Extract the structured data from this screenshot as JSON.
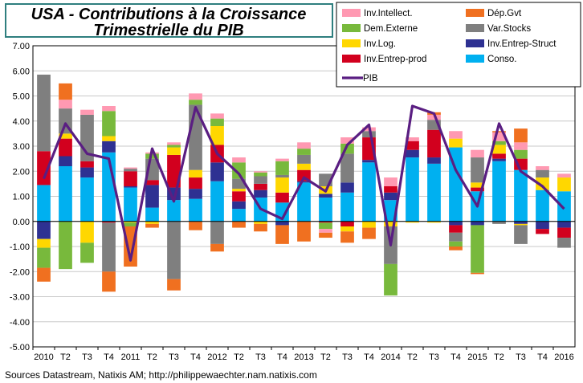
{
  "chart_data": {
    "type": "bar",
    "stacked": true,
    "title_line1": "USA - Contributions à la Croissance",
    "title_line2": "Trimestrielle du PIB",
    "source": "Sources Datastream, Natixis AM; http://philippewaechter.nam.natixis.com",
    "ylim": [
      -5,
      7
    ],
    "yticks": [
      "7.00",
      "6.00",
      "5.00",
      "4.00",
      "3.00",
      "2.00",
      "1.00",
      "0.00",
      "-1.00",
      "-2.00",
      "-3.00",
      "-4.00",
      "-5.00"
    ],
    "x_labels": [
      "2010",
      "T2",
      "T3",
      "T4",
      "2011",
      "T2",
      "T3",
      "T4",
      "2012",
      "T2",
      "T3",
      "T4",
      "2013",
      "T2",
      "T3",
      "T4",
      "2014",
      "T2",
      "T3",
      "T4",
      "2015",
      "T2",
      "T3",
      "T4",
      "2016"
    ],
    "series": [
      {
        "name": "Conso.",
        "color": "#00B0F0",
        "values": [
          1.45,
          2.2,
          1.75,
          2.75,
          1.35,
          0.55,
          0.85,
          0.9,
          1.6,
          0.5,
          0.95,
          0.75,
          1.55,
          0.95,
          1.15,
          2.35,
          0.85,
          2.55,
          2.3,
          2.95,
          1.2,
          2.4,
          2.05,
          1.25,
          1.2
        ]
      },
      {
        "name": "Inv.Entrep-Struct",
        "color": "#2E3192",
        "values": [
          -0.7,
          0.4,
          0.4,
          0.45,
          0.05,
          0.9,
          0.5,
          0.4,
          0.75,
          0.3,
          0.3,
          -0.15,
          0.05,
          0.15,
          0.4,
          0.1,
          0.3,
          0.3,
          0.25,
          -0.15,
          -0.15,
          0.1,
          -0.1,
          -0.3,
          -0.25
        ]
      },
      {
        "name": "Inv.Entrep-prod",
        "color": "#D2001E",
        "values": [
          1.35,
          0.7,
          0.25,
          -0.05,
          0.6,
          0.2,
          1.3,
          0.45,
          0.7,
          0.4,
          0.25,
          0.4,
          0.45,
          -0.05,
          -0.2,
          0.9,
          0.25,
          0.35,
          1.1,
          -0.3,
          0.15,
          0.2,
          0.45,
          -0.2,
          -0.4
        ]
      },
      {
        "name": "Inv.Log.",
        "color": "#FFD700",
        "values": [
          -0.35,
          0.2,
          -0.85,
          0.2,
          -0.05,
          -0.1,
          0.3,
          0.3,
          0.75,
          0.1,
          -0.1,
          0.6,
          0.25,
          0.3,
          -0.2,
          -0.25,
          -0.2,
          -0.05,
          -0.05,
          0.35,
          0.2,
          0.35,
          -0.05,
          0.5,
          0.55
        ]
      },
      {
        "name": "Var.Stocks",
        "color": "#7F7F7F",
        "values": [
          3.05,
          1.0,
          1.85,
          -1.95,
          0.1,
          0.85,
          -2.3,
          2.6,
          -0.9,
          0.4,
          0.3,
          0.1,
          0.35,
          0.5,
          1.15,
          0.25,
          -1.5,
          0.0,
          0.4,
          -0.35,
          1.0,
          -0.1,
          -0.75,
          0.3,
          -0.4
        ]
      },
      {
        "name": "Dem.Externe",
        "color": "#78B93C",
        "values": [
          -0.8,
          -1.9,
          -0.8,
          1.0,
          -0.15,
          0.2,
          0.1,
          0.2,
          0.3,
          0.65,
          0.15,
          0.55,
          0.25,
          -0.25,
          0.4,
          0.0,
          -1.25,
          0.0,
          0.0,
          -0.2,
          -1.9,
          0.15,
          0.35,
          0.0,
          0.0
        ]
      },
      {
        "name": "Inv.Intellect.",
        "color": "#FF99B2",
        "values": [
          0.0,
          0.35,
          0.2,
          0.2,
          0.05,
          0.05,
          0.1,
          0.25,
          0.2,
          0.2,
          0.05,
          0.1,
          0.25,
          -0.15,
          0.25,
          0.15,
          0.35,
          0.15,
          0.2,
          0.3,
          0.3,
          0.35,
          0.3,
          0.15,
          0.15
        ]
      },
      {
        "name": "Dép.Gvt",
        "color": "#F07020",
        "values": [
          -0.55,
          0.65,
          0.0,
          -0.8,
          -1.6,
          -0.15,
          -0.45,
          -0.35,
          -0.3,
          -0.25,
          -0.3,
          -0.75,
          -0.8,
          -0.2,
          -0.45,
          -0.45,
          0.0,
          0.0,
          0.1,
          -0.15,
          -0.05,
          0.05,
          0.55,
          0.0,
          0.0
        ]
      }
    ],
    "line": {
      "name": "PIB",
      "color": "#5A1E82",
      "values": [
        1.7,
        3.9,
        2.7,
        2.5,
        -1.55,
        2.9,
        0.8,
        4.55,
        2.7,
        1.9,
        0.5,
        0.1,
        1.75,
        1.2,
        3.05,
        3.85,
        -0.95,
        4.6,
        4.3,
        2.05,
        0.6,
        3.9,
        2.0,
        1.4,
        0.5
      ]
    },
    "legend": {
      "placement": "top-right",
      "items": [
        "Inv.Intellect.",
        "Dép.Gvt",
        "Dem.Externe",
        "Var.Stocks",
        "Inv.Log.",
        "Inv.Entrep-Struct",
        "Inv.Entrep-prod",
        "Conso.",
        "PIB"
      ]
    }
  }
}
